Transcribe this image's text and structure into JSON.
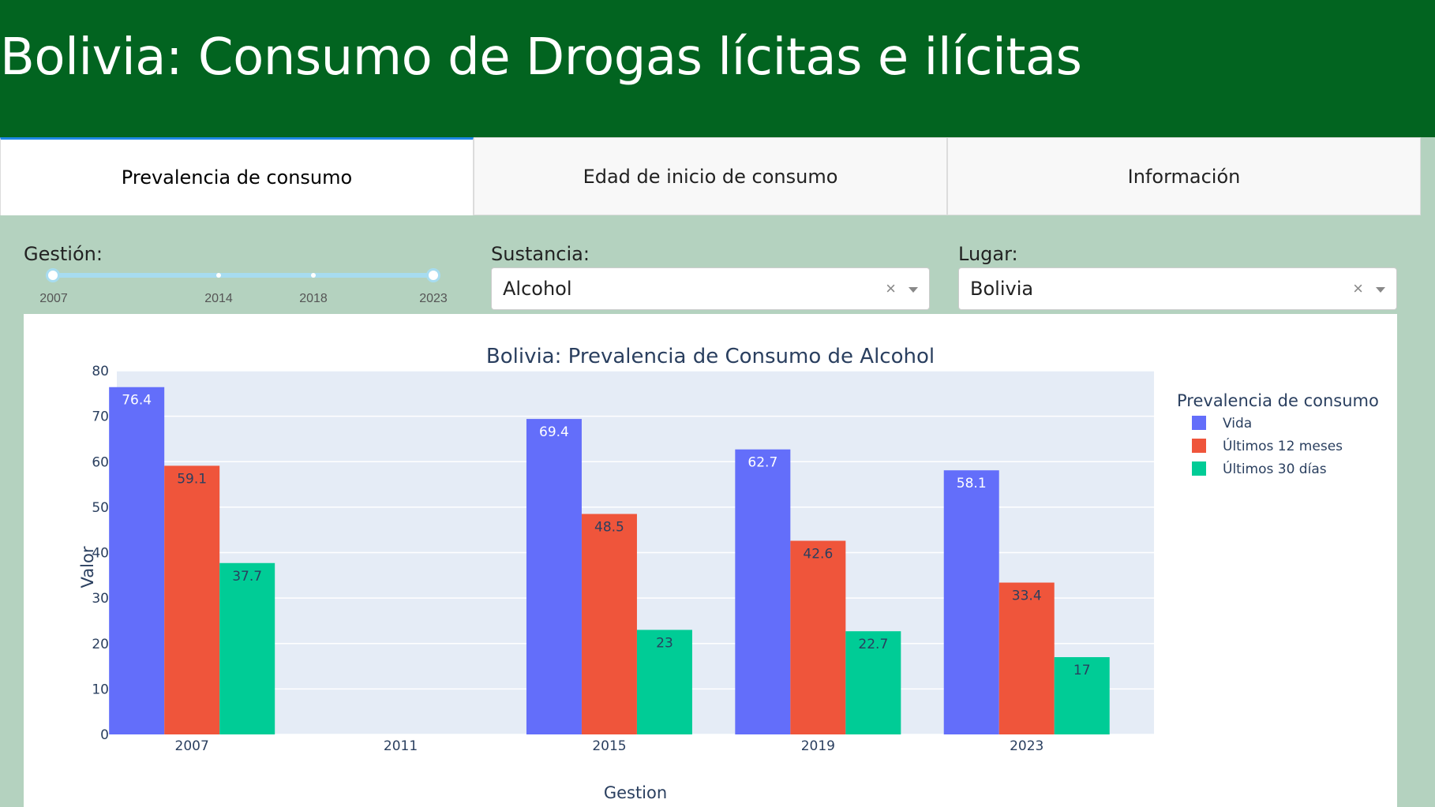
{
  "header": {
    "title": "Bolivia: Consumo de Drogas lícitas e ilícitas"
  },
  "tabs": [
    {
      "label": "Prevalencia de consumo"
    },
    {
      "label": "Edad de inicio de consumo"
    },
    {
      "label": "Información"
    }
  ],
  "controls": {
    "gestion": {
      "label": "Gestión:",
      "marks": [
        "2007",
        "2014",
        "2018",
        "2023"
      ],
      "range": [
        "2007",
        "2023"
      ]
    },
    "sustancia": {
      "label": "Sustancia:",
      "value": "Alcohol",
      "clear_icon": "×"
    },
    "lugar": {
      "label": "Lugar:",
      "value": "Bolivia",
      "clear_icon": "×"
    }
  },
  "colors": {
    "header": "#026420",
    "accent": "#1e88e5",
    "vida": "#636efa",
    "doce": "#ef553b",
    "treinta": "#00cc96",
    "plot_bg": "#e5ecf6"
  },
  "chart_data": {
    "type": "bar",
    "title": "Bolivia: Prevalencia de Consumo de Alcohol",
    "xlabel": "Gestion",
    "ylabel": "Valor",
    "categories": [
      "2007",
      "2011",
      "2015",
      "2019",
      "2023"
    ],
    "ylim": [
      0,
      80
    ],
    "yticks": [
      0,
      10,
      20,
      30,
      40,
      50,
      60,
      70,
      80
    ],
    "legend_title": "Prevalencia de consumo",
    "legend_position": "right",
    "grid": true,
    "series": [
      {
        "name": "Vida",
        "color": "#636efa",
        "label_color": "#ffffff",
        "values": [
          76.4,
          null,
          69.4,
          62.7,
          58.1
        ],
        "labels": [
          "76.4",
          "",
          "69.4",
          "62.7",
          "58.1"
        ]
      },
      {
        "name": "Últimos 12 meses",
        "color": "#ef553b",
        "label_color": "#2a3f5f",
        "values": [
          59.1,
          null,
          48.5,
          42.6,
          33.4
        ],
        "labels": [
          "59.1",
          "",
          "48.5",
          "42.6",
          "33.4"
        ]
      },
      {
        "name": "Últimos 30 días",
        "color": "#00cc96",
        "label_color": "#2a3f5f",
        "values": [
          37.7,
          null,
          23,
          22.7,
          17
        ],
        "labels": [
          "37.7",
          "",
          "23",
          "22.7",
          "17"
        ]
      }
    ]
  }
}
